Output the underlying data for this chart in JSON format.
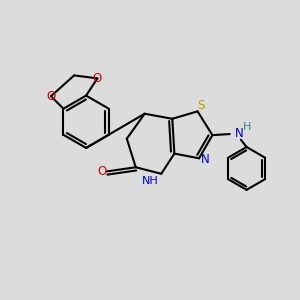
{
  "bg_color": "#dcdcdc",
  "bond_color": "#000000",
  "S_color": "#b8a000",
  "N_color": "#0000cc",
  "O_color": "#cc0000",
  "H_color": "#2f8b8b",
  "lw": 1.5,
  "fs": 8.0,
  "xlim": [
    0,
    10
  ],
  "ylim": [
    0,
    10
  ],
  "doff": 0.11
}
